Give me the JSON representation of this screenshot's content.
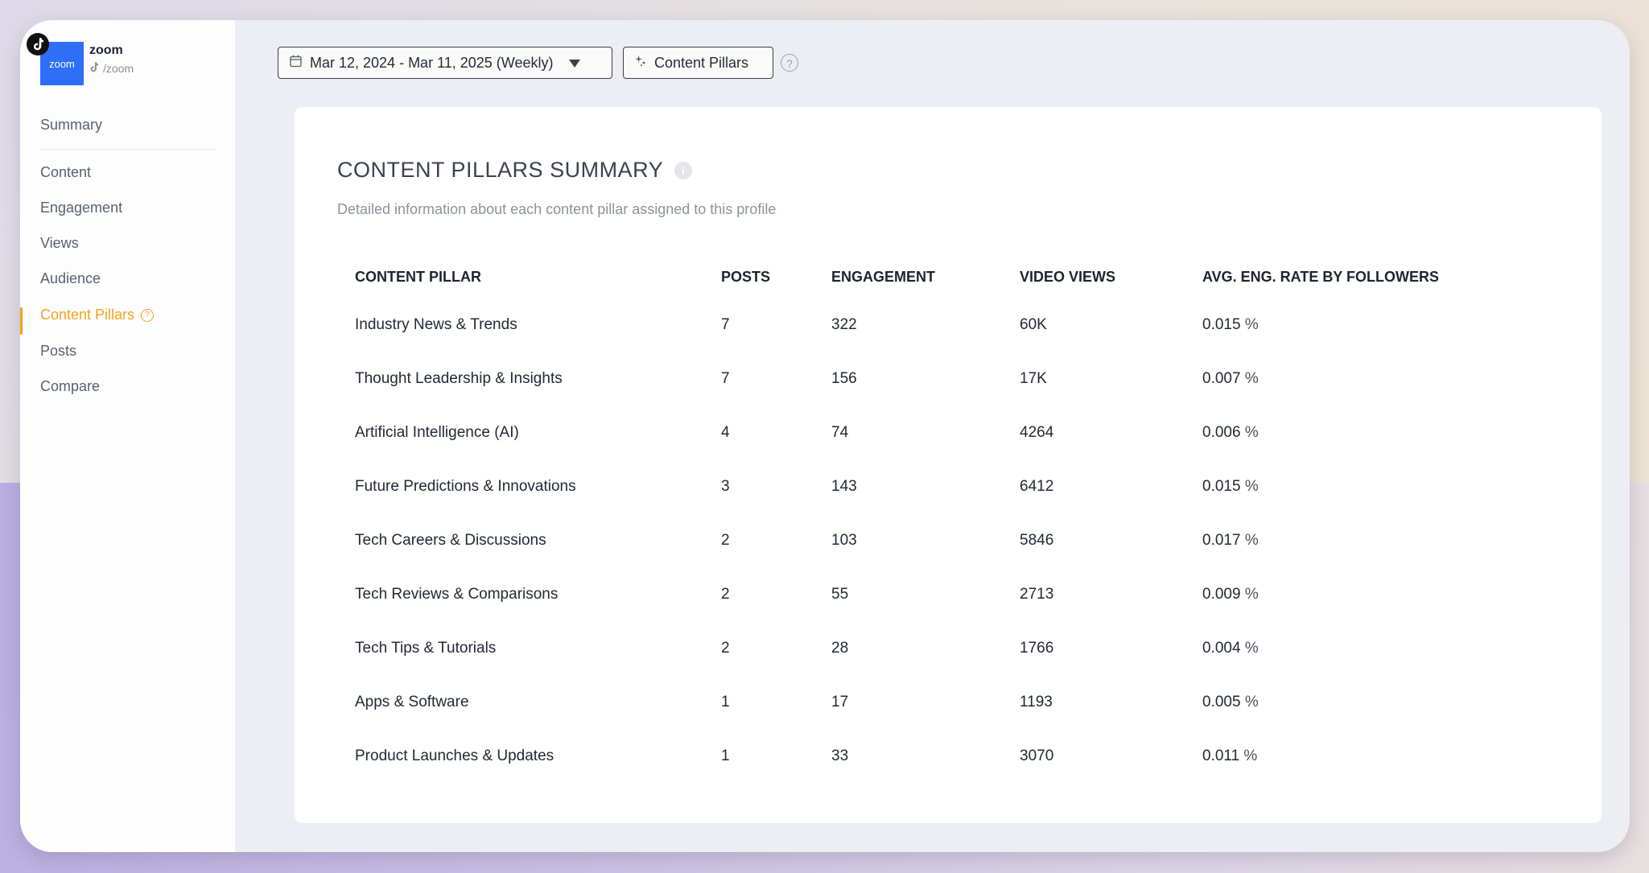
{
  "profile": {
    "logo_text": "zoom",
    "name": "zoom",
    "handle": "/zoom"
  },
  "sidebar": {
    "items": [
      {
        "label": "Summary"
      },
      {
        "label": "Content"
      },
      {
        "label": "Engagement"
      },
      {
        "label": "Views"
      },
      {
        "label": "Audience"
      },
      {
        "label": "Content Pillars"
      },
      {
        "label": "Posts"
      },
      {
        "label": "Compare"
      }
    ],
    "active": "Content Pillars"
  },
  "toolbar": {
    "date_range": "Mar 12, 2024 - Mar 11, 2025 (Weekly)",
    "pillars_button": "Content Pillars",
    "help_glyph": "?"
  },
  "card": {
    "title": "CONTENT PILLARS SUMMARY",
    "subtitle": "Detailed information about each content pillar assigned to this profile"
  },
  "table": {
    "headers": [
      "CONTENT PILLAR",
      "POSTS",
      "ENGAGEMENT",
      "VIDEO VIEWS",
      "AVG. ENG. RATE BY FOLLOWERS"
    ],
    "rows": [
      {
        "pillar": "Industry News & Trends",
        "posts": "7",
        "engagement": "322",
        "views": "60K",
        "rate": "0.015",
        "unit": "%"
      },
      {
        "pillar": "Thought Leadership & Insights",
        "posts": "7",
        "engagement": "156",
        "views": "17K",
        "rate": "0.007",
        "unit": "%"
      },
      {
        "pillar": "Artificial Intelligence (AI)",
        "posts": "4",
        "engagement": "74",
        "views": "4264",
        "rate": "0.006",
        "unit": "%"
      },
      {
        "pillar": "Future Predictions & Innovations",
        "posts": "3",
        "engagement": "143",
        "views": "6412",
        "rate": "0.015",
        "unit": "%"
      },
      {
        "pillar": "Tech Careers & Discussions",
        "posts": "2",
        "engagement": "103",
        "views": "5846",
        "rate": "0.017",
        "unit": "%"
      },
      {
        "pillar": "Tech Reviews & Comparisons",
        "posts": "2",
        "engagement": "55",
        "views": "2713",
        "rate": "0.009",
        "unit": "%"
      },
      {
        "pillar": "Tech Tips & Tutorials",
        "posts": "2",
        "engagement": "28",
        "views": "1766",
        "rate": "0.004",
        "unit": "%"
      },
      {
        "pillar": "Apps & Software",
        "posts": "1",
        "engagement": "17",
        "views": "1193",
        "rate": "0.005",
        "unit": "%"
      },
      {
        "pillar": "Product Launches & Updates",
        "posts": "1",
        "engagement": "33",
        "views": "3070",
        "rate": "0.011",
        "unit": "%"
      }
    ]
  },
  "colors": {
    "accent": "#f2a31b",
    "brand_blue": "#2d6ff6"
  },
  "icons": {
    "platform": "tiktok-icon",
    "calendar": "calendar-icon",
    "dropdown": "caret-down-icon",
    "pillars": "sparkle-icon",
    "help": "help-icon",
    "info": "info-icon"
  }
}
